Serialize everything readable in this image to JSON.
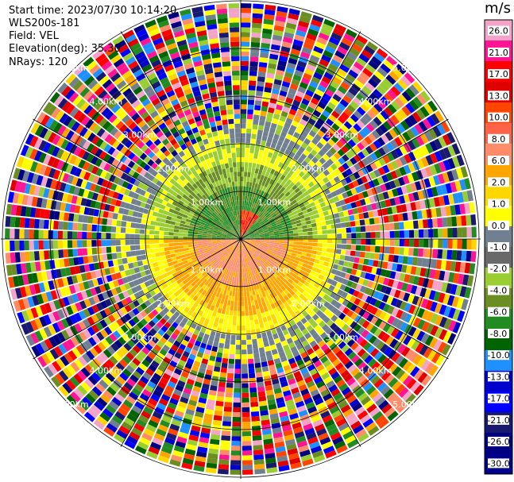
{
  "header": {
    "start_time_label": "Start time:",
    "start_time": "2023/07/30 10:14:20",
    "instrument": "WLS200s-181",
    "field_label": "Field:",
    "field": "VEL",
    "elevation_label": "Elevation(deg):",
    "elevation": "35.30",
    "nrays_label": "NRays:",
    "nrays": "120"
  },
  "colorbar": {
    "unit": "m/s",
    "ticks": [
      "26.0",
      "21.0",
      "17.0",
      "13.0",
      "10.0",
      "8.0",
      "6.0",
      "2.0",
      "1.0",
      "0.0",
      "-1.0",
      "-2.0",
      "-4.0",
      "-6.0",
      "-8.0",
      "-10.0",
      "-13.0",
      "-17.0",
      "-21.0",
      "-26.0",
      "-30.0"
    ],
    "colors": [
      "#f4a3c8",
      "#ff1493",
      "#ff0000",
      "#e00000",
      "#ff4500",
      "#ff6347",
      "#ff8c69",
      "#ffa500",
      "#ffd700",
      "#ffff00",
      "#708090",
      "#696969",
      "#9acd32",
      "#6b8e23",
      "#228b22",
      "#006400",
      "#1e90ff",
      "#0000cd",
      "#0000ff",
      "#191970",
      "#000080",
      "#00008b"
    ]
  },
  "chart_data": {
    "type": "heatmap",
    "projection": "polar PPI",
    "field": "VEL",
    "unit": "m/s",
    "nrays": 120,
    "range_rings_km": [
      1.0,
      2.0,
      3.0,
      4.0,
      5.0
    ],
    "range_labels": [
      "1.00km",
      "2.00km",
      "3.00km",
      "4.00km",
      "5.00km"
    ],
    "grid": true,
    "colorbar_position": "right"
  }
}
